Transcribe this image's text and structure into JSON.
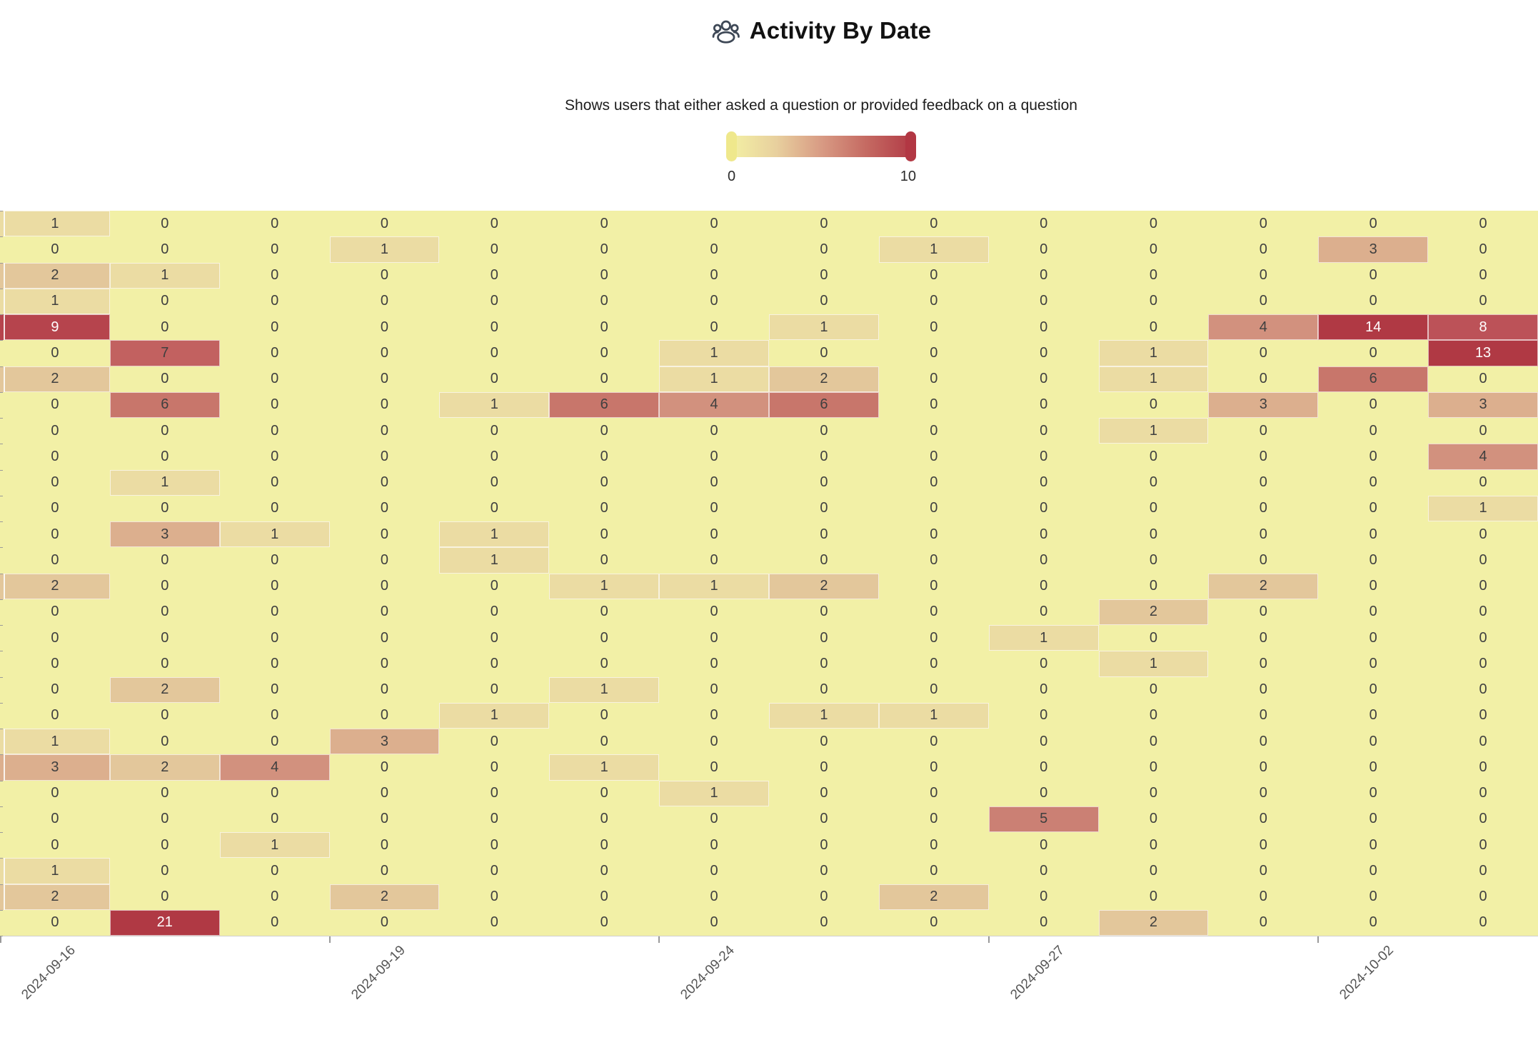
{
  "header": {
    "icon": "users-icon",
    "title": "Activity By Date",
    "subtitle": "Shows users that either asked a question or provided feedback on a question"
  },
  "legend": {
    "min_label": "0",
    "max_label": "10",
    "min_handle_color": "#EFE88C",
    "max_handle_color": "#B23743",
    "gradient_colors": [
      "#F3F0A4",
      "#E8D09E",
      "#D89B84",
      "#C56A62",
      "#B23C47"
    ]
  },
  "chart_data": {
    "type": "heatmap",
    "title": "Activity By Date",
    "subtitle": "Shows users that either asked a question or provided feedback on a question",
    "n_rows": 28,
    "n_columns": 14,
    "x_tick_labels": [
      "2024-09-16",
      "2024-09-19",
      "2024-09-24",
      "2024-09-27",
      "2024-10-02"
    ],
    "x_tick_column_indexes": [
      0,
      3,
      6,
      9,
      12
    ],
    "color_range": [
      0,
      10
    ],
    "value_colors": [
      "#F2F0A6",
      "#EBDCA3",
      "#E3C79B",
      "#DCAF8E",
      "#D2917E",
      "#CB8074",
      "#C8766B",
      "#C26160",
      "#BC5258",
      "#B6444D",
      "#B03944"
    ],
    "white_text_threshold": 8,
    "grid_background": "#F2F0A6",
    "values": [
      [
        1,
        0,
        0,
        0,
        0,
        0,
        0,
        0,
        0,
        0,
        0,
        0,
        0,
        0
      ],
      [
        0,
        0,
        0,
        1,
        0,
        0,
        0,
        0,
        1,
        0,
        0,
        0,
        3,
        0
      ],
      [
        2,
        1,
        0,
        0,
        0,
        0,
        0,
        0,
        0,
        0,
        0,
        0,
        0,
        0
      ],
      [
        1,
        0,
        0,
        0,
        0,
        0,
        0,
        0,
        0,
        0,
        0,
        0,
        0,
        0
      ],
      [
        9,
        0,
        0,
        0,
        0,
        0,
        0,
        1,
        0,
        0,
        0,
        4,
        14,
        8
      ],
      [
        0,
        7,
        0,
        0,
        0,
        0,
        1,
        0,
        0,
        0,
        1,
        0,
        0,
        13
      ],
      [
        2,
        0,
        0,
        0,
        0,
        0,
        1,
        2,
        0,
        0,
        1,
        0,
        6,
        0
      ],
      [
        0,
        6,
        0,
        0,
        1,
        6,
        4,
        6,
        0,
        0,
        0,
        3,
        0,
        3
      ],
      [
        0,
        0,
        0,
        0,
        0,
        0,
        0,
        0,
        0,
        0,
        1,
        0,
        0,
        0
      ],
      [
        0,
        0,
        0,
        0,
        0,
        0,
        0,
        0,
        0,
        0,
        0,
        0,
        0,
        4
      ],
      [
        0,
        1,
        0,
        0,
        0,
        0,
        0,
        0,
        0,
        0,
        0,
        0,
        0,
        0
      ],
      [
        0,
        0,
        0,
        0,
        0,
        0,
        0,
        0,
        0,
        0,
        0,
        0,
        0,
        1
      ],
      [
        0,
        3,
        1,
        0,
        1,
        0,
        0,
        0,
        0,
        0,
        0,
        0,
        0,
        0
      ],
      [
        0,
        0,
        0,
        0,
        1,
        0,
        0,
        0,
        0,
        0,
        0,
        0,
        0,
        0
      ],
      [
        2,
        0,
        0,
        0,
        0,
        1,
        1,
        2,
        0,
        0,
        0,
        2,
        0,
        0
      ],
      [
        0,
        0,
        0,
        0,
        0,
        0,
        0,
        0,
        0,
        0,
        2,
        0,
        0,
        0
      ],
      [
        0,
        0,
        0,
        0,
        0,
        0,
        0,
        0,
        0,
        1,
        0,
        0,
        0,
        0
      ],
      [
        0,
        0,
        0,
        0,
        0,
        0,
        0,
        0,
        0,
        0,
        1,
        0,
        0,
        0
      ],
      [
        0,
        2,
        0,
        0,
        0,
        1,
        0,
        0,
        0,
        0,
        0,
        0,
        0,
        0
      ],
      [
        0,
        0,
        0,
        0,
        1,
        0,
        0,
        1,
        1,
        0,
        0,
        0,
        0,
        0
      ],
      [
        1,
        0,
        0,
        3,
        0,
        0,
        0,
        0,
        0,
        0,
        0,
        0,
        0,
        0
      ],
      [
        3,
        2,
        4,
        0,
        0,
        1,
        0,
        0,
        0,
        0,
        0,
        0,
        0,
        0
      ],
      [
        0,
        0,
        0,
        0,
        0,
        0,
        1,
        0,
        0,
        0,
        0,
        0,
        0,
        0
      ],
      [
        0,
        0,
        0,
        0,
        0,
        0,
        0,
        0,
        0,
        5,
        0,
        0,
        0,
        0
      ],
      [
        0,
        0,
        1,
        0,
        0,
        0,
        0,
        0,
        0,
        0,
        0,
        0,
        0,
        0
      ],
      [
        1,
        0,
        0,
        0,
        0,
        0,
        0,
        0,
        0,
        0,
        0,
        0,
        0,
        0
      ],
      [
        2,
        0,
        0,
        2,
        0,
        0,
        0,
        0,
        2,
        0,
        0,
        0,
        0,
        0
      ],
      [
        0,
        21,
        0,
        0,
        0,
        0,
        0,
        0,
        0,
        0,
        2,
        0,
        0,
        0
      ]
    ]
  }
}
